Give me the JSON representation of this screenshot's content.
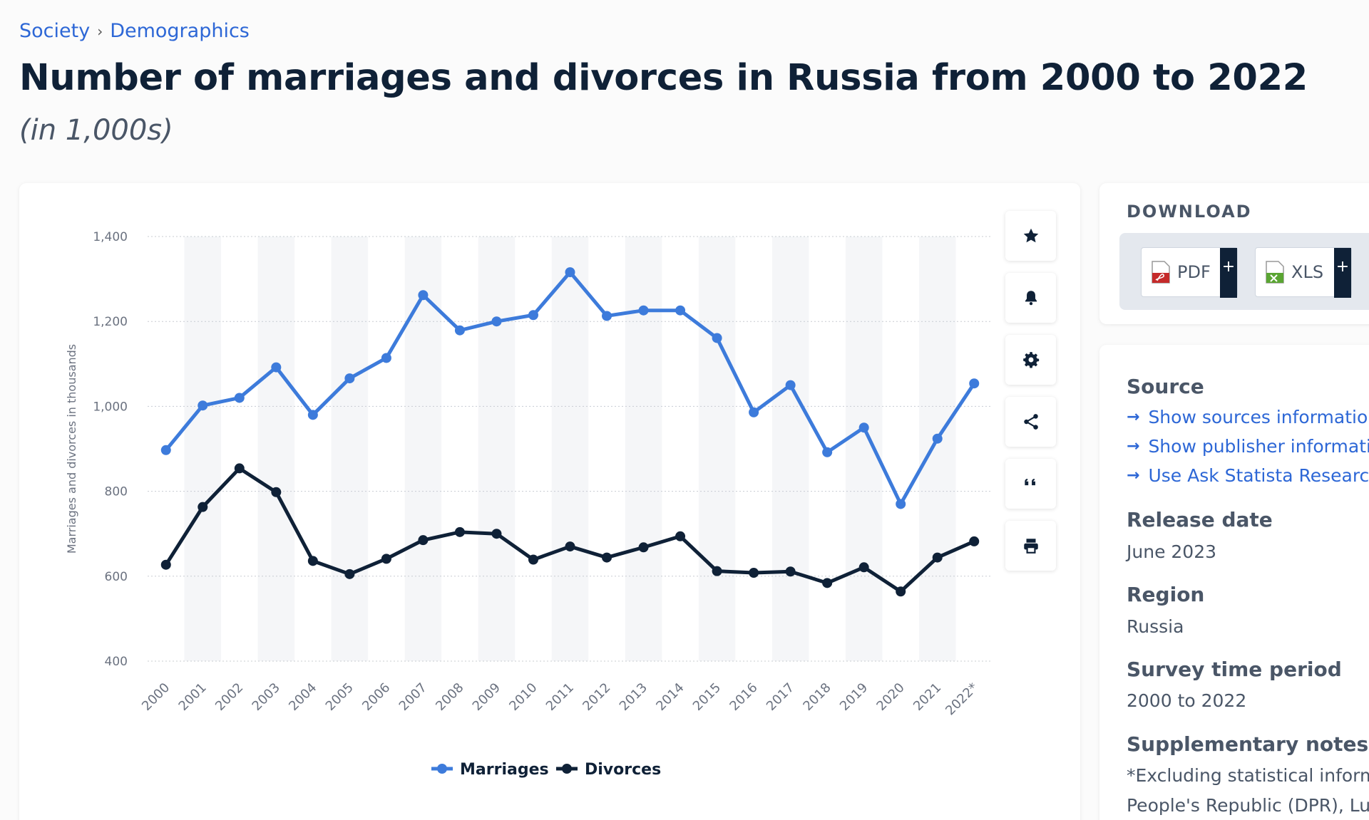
{
  "breadcrumb": {
    "items": [
      "Society",
      "Demographics"
    ],
    "separator": "›"
  },
  "header": {
    "title": "Number of marriages and divorces in Russia from 2000 to 2022",
    "subtitle": "(in 1,000s)"
  },
  "colors": {
    "marriages": "#3d7bdb",
    "divorces": "#0f2137",
    "link": "#2d67d6"
  },
  "toolbar": {
    "icons": [
      "star-icon",
      "bell-icon",
      "gear-icon",
      "share-icon",
      "quote-icon",
      "print-icon"
    ]
  },
  "download": {
    "heading": "DOWNLOAD",
    "buttons": [
      {
        "label": "PDF",
        "icon": "pdf-file-icon",
        "plus": "+"
      },
      {
        "label": "XLS",
        "icon": "xls-file-icon",
        "plus": "+"
      }
    ]
  },
  "info": {
    "source_label": "Source",
    "links": [
      "Show sources information",
      "Show publisher information",
      "Use Ask Statista Research"
    ],
    "release_label": "Release date",
    "release_value": "June 2023",
    "region_label": "Region",
    "region_value": "Russia",
    "period_label": "Survey time period",
    "period_value": "2000 to 2022",
    "notes_label": "Supplementary notes",
    "notes_lines": [
      "*Excluding statistical information",
      "People's Republic (DPR), Luhansk"
    ]
  },
  "chart_data": {
    "type": "line",
    "x": [
      "2000",
      "2001",
      "2002",
      "2003",
      "2004",
      "2005",
      "2006",
      "2007",
      "2008",
      "2009",
      "2010",
      "2011",
      "2012",
      "2013",
      "2014",
      "2015",
      "2016",
      "2017",
      "2018",
      "2019",
      "2020",
      "2021",
      "2022*"
    ],
    "series": [
      {
        "name": "Marriages",
        "values": [
          897,
          1002,
          1020,
          1092,
          980,
          1066,
          1114,
          1262,
          1179,
          1200,
          1215,
          1316,
          1213,
          1226,
          1226,
          1161,
          986,
          1050,
          892,
          950,
          770,
          924,
          1054
        ]
      },
      {
        "name": "Divorces",
        "values": [
          627,
          763,
          854,
          798,
          636,
          605,
          641,
          685,
          704,
          700,
          639,
          670,
          644,
          668,
          694,
          612,
          608,
          611,
          584,
          621,
          564,
          644,
          682
        ]
      }
    ],
    "ylabel": "Marriages and divorces in thousands",
    "xlabel": "",
    "ylim": [
      400,
      1400
    ],
    "yticks": [
      "400",
      "600",
      "800",
      "1,000",
      "1,200",
      "1,400"
    ],
    "grid": true,
    "legend": "bottom-center"
  }
}
